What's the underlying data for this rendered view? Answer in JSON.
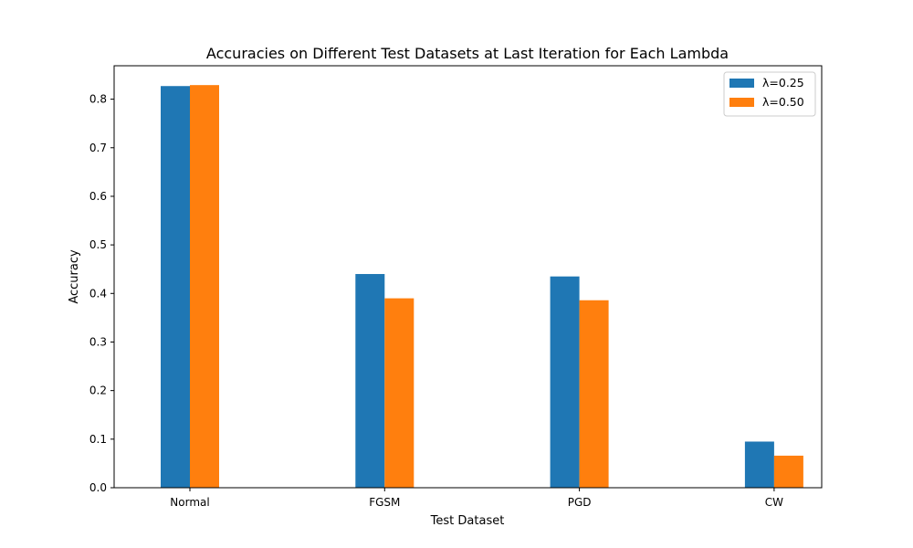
{
  "chart_data": {
    "type": "bar",
    "title": "Accuracies on Different Test Datasets at Last Iteration for Each Lambda",
    "xlabel": "Test Dataset",
    "ylabel": "Accuracy",
    "categories": [
      "Normal",
      "FGSM",
      "PGD",
      "CW"
    ],
    "series": [
      {
        "name": "λ=0.25",
        "color": "#1f77b4",
        "values": [
          0.827,
          0.44,
          0.435,
          0.095
        ]
      },
      {
        "name": "λ=0.50",
        "color": "#ff7f0e",
        "values": [
          0.829,
          0.39,
          0.386,
          0.066
        ]
      }
    ],
    "ylim": [
      0,
      0.8688
    ],
    "yticks": [
      "0.0",
      "0.1",
      "0.2",
      "0.3",
      "0.4",
      "0.5",
      "0.6",
      "0.7",
      "0.8"
    ],
    "grid": false,
    "legend_position": "top-right"
  }
}
